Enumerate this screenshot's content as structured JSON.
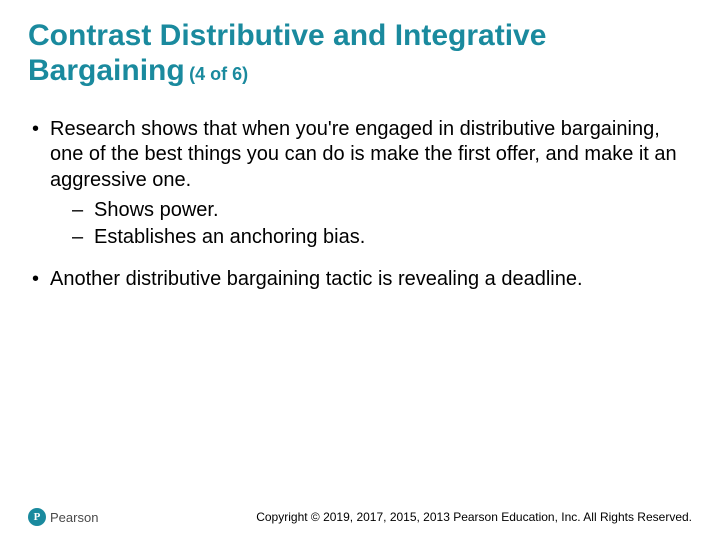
{
  "title": {
    "main": "Contrast Distributive and Integrative Bargaining",
    "sub": "(4 of 6)",
    "color": "#1a8a9e",
    "main_fontsize": 30,
    "sub_fontsize": 18
  },
  "body": {
    "color": "#000000",
    "fontsize": 20,
    "bullets": [
      {
        "text": "Research shows that when you're engaged in distributive bargaining, one of the best things you can do is make the first offer, and make it an aggressive one.",
        "sub": [
          "Shows power.",
          "Establishes an anchoring bias."
        ]
      },
      {
        "text": "Another distributive bargaining tactic is revealing a deadline.",
        "sub": []
      }
    ]
  },
  "footer": {
    "logo_letter": "P",
    "logo_text": "Pearson",
    "logo_circle_bg": "#1a8a9e",
    "logo_text_color": "#4a4a4a",
    "copyright": "Copyright © 2019, 2017, 2015, 2013 Pearson Education, Inc. All Rights Reserved.",
    "copyright_fontsize": 12
  }
}
